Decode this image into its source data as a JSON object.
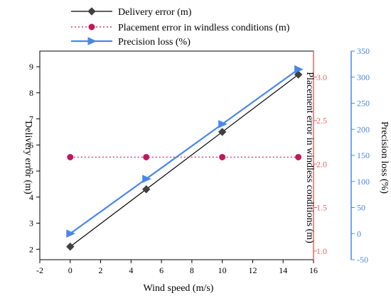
{
  "chart_data": {
    "type": "line",
    "xlabel": "Wind speed (m/s)",
    "x": [
      0,
      5,
      10,
      15
    ],
    "xlim": [
      -2,
      16
    ],
    "xticks": [
      -2,
      0,
      2,
      4,
      6,
      8,
      10,
      12,
      14,
      16
    ],
    "grid": false,
    "legend_position": "top-center",
    "axes": {
      "left": {
        "label": "Delivery error (m)",
        "ylim": [
          1.6,
          9.6
        ],
        "ticks": [
          2,
          3,
          4,
          5,
          6,
          7,
          8,
          9
        ],
        "color": "#000000"
      },
      "right1": {
        "label": "Placement error in windless conditions (m)",
        "ylim": [
          0.9,
          3.3
        ],
        "ticks": [
          1.0,
          1.5,
          2.0,
          2.5,
          3.0
        ],
        "tick_labels": [
          "1.0",
          "1.5",
          "2.0",
          "2.5",
          "3.0"
        ],
        "color": "#e06666"
      },
      "right2": {
        "label": "Precision loss (%)",
        "ylim": [
          -50,
          350
        ],
        "ticks": [
          -50,
          0,
          50,
          100,
          150,
          200,
          250,
          300,
          350
        ],
        "color": "#4a86e8"
      }
    },
    "series": [
      {
        "name": "Delivery error (m)",
        "axis": "left",
        "values": [
          2.1,
          4.3,
          6.5,
          8.7
        ],
        "color": "#000000",
        "line_color": "#000000",
        "line_style": "solid",
        "marker": "diamond",
        "marker_color": "#404040"
      },
      {
        "name": "Placement error in windless conditions (m)",
        "axis": "right1",
        "values": [
          2.08,
          2.08,
          2.08,
          2.08
        ],
        "color": "#c2185b",
        "line_color": "#c2185b",
        "line_style": "dotted",
        "marker": "circle",
        "marker_color": "#c2185b"
      },
      {
        "name": "Precision loss (%)",
        "axis": "right2",
        "values": [
          0,
          105,
          210,
          315
        ],
        "color": "#4a86e8",
        "line_color": "#4a86e8",
        "line_style": "solid",
        "marker": "triangle-right",
        "marker_color": "#4a86e8"
      }
    ]
  }
}
